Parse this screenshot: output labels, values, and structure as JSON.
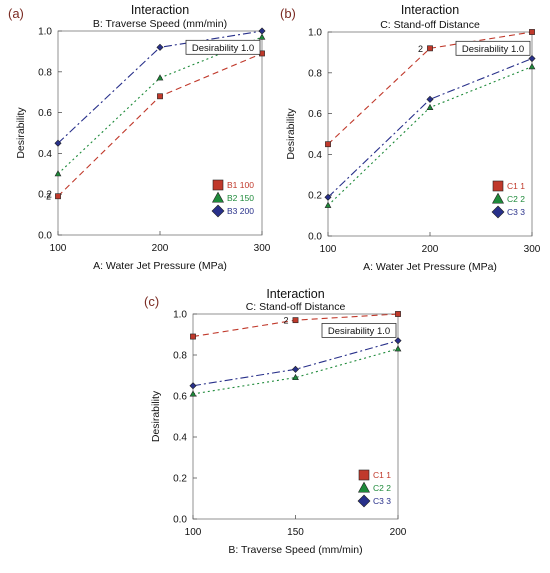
{
  "chart_data": [
    {
      "panel_label": "(a)",
      "type": "line",
      "title": "Interaction",
      "subtitle": "B: Traverse Speed (mm/min)",
      "xlabel": "A: Water Jet Pressure (MPa)",
      "ylabel": "Desirability",
      "x": [
        100,
        200,
        300
      ],
      "xticks": [
        "100",
        "200",
        "300"
      ],
      "xlim": [
        100,
        300
      ],
      "ylim": [
        0.0,
        1.0
      ],
      "yticks": [
        "0.0",
        "0.2",
        "0.4",
        "0.6",
        "0.8",
        "1.0"
      ],
      "annotation": {
        "text": "Desirability  1.0",
        "x": 300,
        "y": 0.92
      },
      "point_labels": [
        {
          "text": "2",
          "series": 0,
          "index": 0
        }
      ],
      "legend_position": "bottom-right",
      "grid": false,
      "series": [
        {
          "name": "B1 100",
          "values": [
            0.19,
            0.68,
            0.89
          ],
          "color": "#c0392b",
          "marker": "square",
          "dash": "6,4",
          "legend_marker": "square"
        },
        {
          "name": "B2 150",
          "values": [
            0.3,
            0.77,
            0.97
          ],
          "color": "#1e8a3a",
          "marker": "triangle",
          "dash": "2,3",
          "legend_marker": "triangle"
        },
        {
          "name": "B3 200",
          "values": [
            0.45,
            0.92,
            1.0
          ],
          "color": "#28308a",
          "marker": "diamond",
          "dash": "8,3,2,3",
          "legend_marker": "diamond"
        }
      ]
    },
    {
      "panel_label": "(b)",
      "type": "line",
      "title": "Interaction",
      "subtitle": "C: Stand-off Distance",
      "xlabel": "A: Water Jet Pressure (MPa)",
      "ylabel": "Desirability",
      "x": [
        100,
        200,
        300
      ],
      "xticks": [
        "100",
        "200",
        "300"
      ],
      "xlim": [
        100,
        300
      ],
      "ylim": [
        0.0,
        1.0
      ],
      "yticks": [
        "0.0",
        "0.2",
        "0.4",
        "0.6",
        "0.8",
        "1.0"
      ],
      "annotation": {
        "text": "Desirability  1.0",
        "x": 300,
        "y": 0.92
      },
      "point_labels": [
        {
          "text": "2",
          "series": 0,
          "index": 1
        }
      ],
      "legend_position": "bottom-right",
      "grid": false,
      "series": [
        {
          "name": "C1 1",
          "values": [
            0.45,
            0.92,
            1.0
          ],
          "color": "#c0392b",
          "marker": "square",
          "dash": "6,4",
          "legend_marker": "square"
        },
        {
          "name": "C2 2",
          "values": [
            0.15,
            0.63,
            0.83
          ],
          "color": "#1e8a3a",
          "marker": "triangle",
          "dash": "2,3",
          "legend_marker": "triangle"
        },
        {
          "name": "C3 3",
          "values": [
            0.19,
            0.67,
            0.87
          ],
          "color": "#28308a",
          "marker": "diamond",
          "dash": "8,3,2,3",
          "legend_marker": "diamond"
        }
      ]
    },
    {
      "panel_label": "(c)",
      "type": "line",
      "title": "Interaction",
      "subtitle": "C: Stand-off Distance",
      "xlabel": "B: Traverse Speed (mm/min)",
      "ylabel": "Desirability",
      "x": [
        100,
        150,
        200
      ],
      "xticks": [
        "100",
        "150",
        "200"
      ],
      "xlim": [
        100,
        200
      ],
      "ylim": [
        0.0,
        1.0
      ],
      "yticks": [
        "0.0",
        "0.2",
        "0.4",
        "0.6",
        "0.8",
        "1.0"
      ],
      "annotation": {
        "text": "Desirability  1.0",
        "x": 200,
        "y": 0.92
      },
      "point_labels": [
        {
          "text": "2",
          "series": 0,
          "index": 1
        }
      ],
      "legend_position": "bottom-right",
      "grid": false,
      "series": [
        {
          "name": "C1 1",
          "values": [
            0.89,
            0.97,
            1.0
          ],
          "color": "#c0392b",
          "marker": "square",
          "dash": "6,4",
          "legend_marker": "square"
        },
        {
          "name": "C2 2",
          "values": [
            0.61,
            0.69,
            0.83
          ],
          "color": "#1e8a3a",
          "marker": "triangle",
          "dash": "2,3",
          "legend_marker": "triangle"
        },
        {
          "name": "C3 3",
          "values": [
            0.65,
            0.73,
            0.87
          ],
          "color": "#28308a",
          "marker": "diamond",
          "dash": "8,3,2,3",
          "legend_marker": "diamond"
        }
      ]
    }
  ]
}
